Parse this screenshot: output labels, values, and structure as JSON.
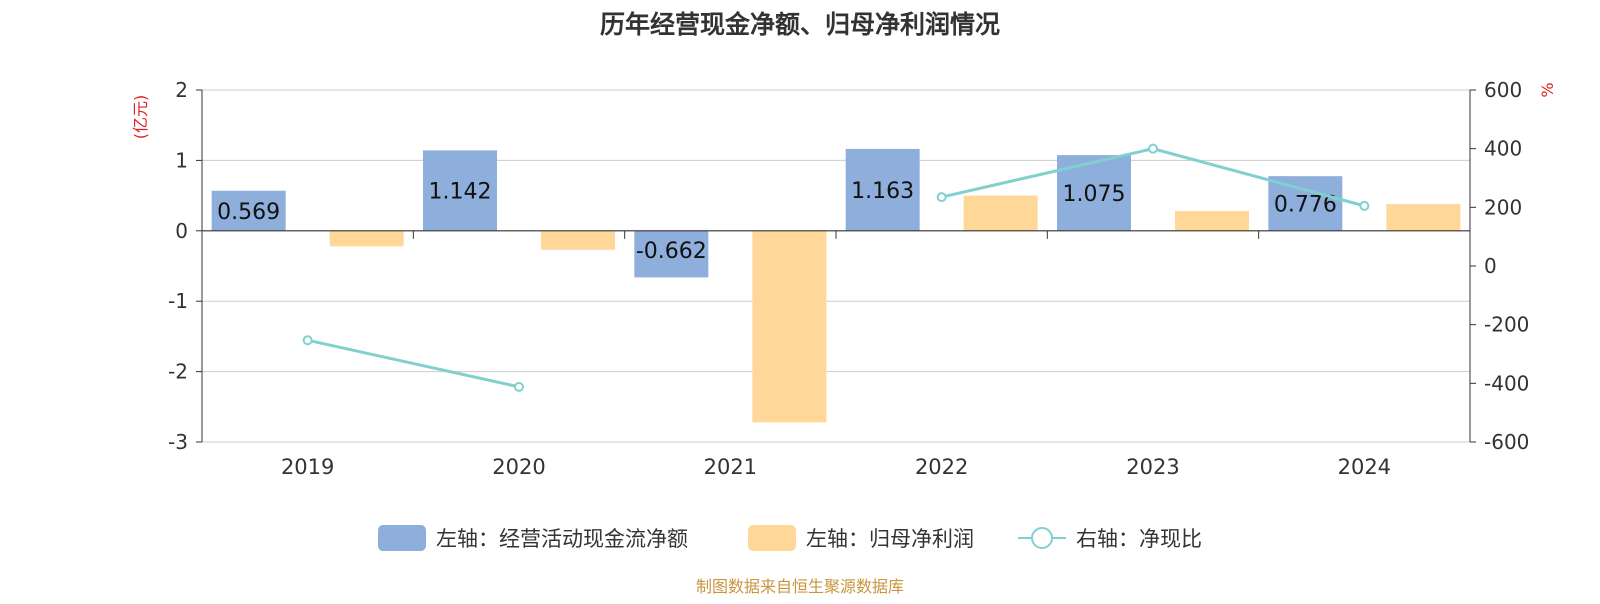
{
  "chart_data": {
    "type": "bar",
    "title": "历年经营现金净额、归母净利润情况",
    "categories": [
      "2019",
      "2020",
      "2021",
      "2022",
      "2023",
      "2024"
    ],
    "series": [
      {
        "name": "左轴：经营活动现金流净额",
        "type": "bar",
        "axis": "left",
        "color": "#8eaedb",
        "values": [
          0.569,
          1.142,
          -0.662,
          1.163,
          1.075,
          0.776
        ],
        "labels": [
          "0.569",
          "1.142",
          "-0.662",
          "1.163",
          "1.075",
          "0.776"
        ]
      },
      {
        "name": "左轴：归母净利润",
        "type": "bar",
        "axis": "left",
        "color": "#ffd899",
        "values": [
          -0.22,
          -0.27,
          -2.72,
          0.5,
          0.28,
          0.38
        ]
      },
      {
        "name": "右轴：净现比",
        "type": "line",
        "axis": "right",
        "color": "#80d0d0",
        "values": [
          -253,
          -412,
          null,
          235,
          400,
          205
        ]
      }
    ],
    "left_axis": {
      "label": "(亿元)",
      "min": -3,
      "max": 2,
      "ticks": [
        2,
        1,
        0,
        -1,
        -2,
        -3
      ]
    },
    "right_axis": {
      "label": "%",
      "min": -600,
      "max": 600,
      "ticks": [
        600,
        400,
        200,
        0,
        -200,
        -400,
        -600
      ]
    },
    "legend_position": "bottom",
    "grid": true,
    "axis_label_color": "#e02020",
    "source": "制图数据来自恒生聚源数据库",
    "source_color": "#c8963c"
  }
}
